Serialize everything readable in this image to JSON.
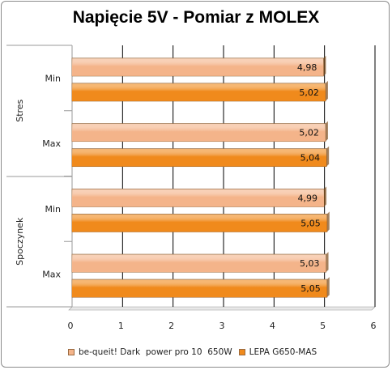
{
  "chart_data": {
    "type": "bar",
    "orientation": "horizontal",
    "title": "Napięcie 5V -  Pomiar z MOLEX",
    "groups": [
      {
        "label": "Stres",
        "categories": [
          "Min",
          "Max"
        ]
      },
      {
        "label": "Spoczynek",
        "categories": [
          "Min",
          "Max"
        ]
      }
    ],
    "series": [
      {
        "name": "be-queit! Dark  power pro 10  650W",
        "values": [
          4.98,
          5.02,
          4.99,
          5.03
        ],
        "color": "#f4b48a"
      },
      {
        "name": "LEPA G650-MAS",
        "values": [
          5.02,
          5.04,
          5.05,
          5.05
        ],
        "color": "#f08a1c"
      }
    ],
    "data_labels": [
      [
        "4,98",
        "5,02",
        "4,99",
        "5,03"
      ],
      [
        "5,02",
        "5,04",
        "5,05",
        "5,05"
      ]
    ],
    "xlim": [
      0,
      6
    ],
    "xticks": [
      "0",
      "1",
      "2",
      "3",
      "4",
      "5",
      "6"
    ],
    "grid": true,
    "legend_position": "bottom"
  }
}
